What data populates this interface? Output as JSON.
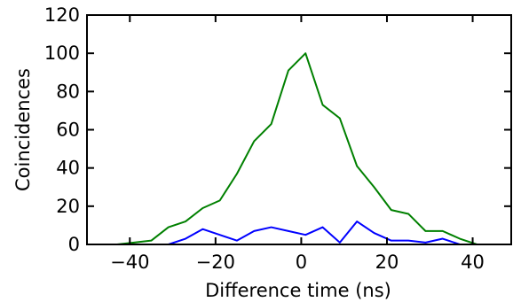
{
  "chart_data": {
    "type": "line",
    "xlabel": "Difference time (ns)",
    "ylabel": "Coincidences",
    "xlim": [
      -50,
      49
    ],
    "ylim": [
      0,
      120
    ],
    "xticks": [
      -40,
      -20,
      0,
      20,
      40
    ],
    "xtick_labels": [
      "−40",
      "−20",
      "0",
      "20",
      "40"
    ],
    "yticks": [
      0,
      20,
      40,
      60,
      80,
      100,
      120
    ],
    "ytick_labels": [
      "0",
      "20",
      "40",
      "60",
      "80",
      "100",
      "120"
    ],
    "grid": false,
    "legend": "none",
    "series": [
      {
        "color": "#008000",
        "x": [
          -51,
          -47,
          -43,
          -39,
          -35,
          -31,
          -27,
          -23,
          -19,
          -15,
          -11,
          -7,
          -3,
          1,
          5,
          9,
          13,
          17,
          21,
          25,
          29,
          33,
          37,
          41,
          45,
          49
        ],
        "y": [
          0,
          0,
          0,
          1,
          2,
          9,
          12,
          19,
          23,
          37,
          54,
          63,
          91,
          100,
          73,
          66,
          41,
          30,
          18,
          16,
          7,
          7,
          3,
          0,
          0,
          0
        ]
      },
      {
        "color": "#0000ff",
        "x": [
          -51,
          -47,
          -43,
          -39,
          -35,
          -31,
          -27,
          -23,
          -19,
          -15,
          -11,
          -7,
          -3,
          1,
          5,
          9,
          13,
          17,
          21,
          25,
          29,
          33,
          37,
          41,
          45,
          49
        ],
        "y": [
          0,
          0,
          0,
          0,
          0,
          0,
          3,
          8,
          5,
          2,
          7,
          9,
          7,
          5,
          9,
          1,
          12,
          6,
          2,
          2,
          1,
          3,
          0,
          0,
          0,
          0
        ]
      }
    ]
  }
}
